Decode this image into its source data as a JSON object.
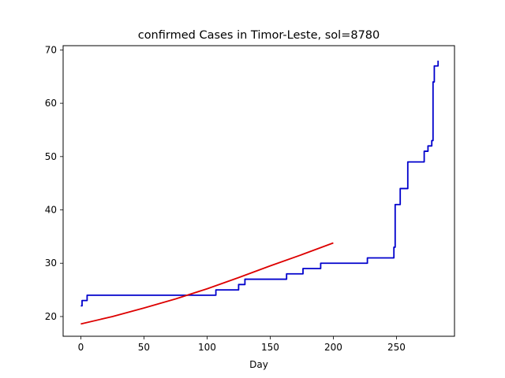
{
  "chart_data": {
    "type": "line",
    "title": "confirmed Cases in Timor-Leste, sol=8780",
    "xlabel": "Day",
    "ylabel": "",
    "xlim": [
      -14,
      296
    ],
    "ylim": [
      16.3,
      70.8
    ],
    "xticks": [
      0,
      50,
      100,
      150,
      200,
      250
    ],
    "yticks": [
      20,
      30,
      40,
      50,
      60,
      70
    ],
    "grid": false,
    "series": [
      {
        "color": "#0000cc",
        "style": "step",
        "x": [
          0,
          1,
          3,
          5,
          106,
          107,
          124,
          125,
          129,
          130,
          162,
          163,
          175,
          176,
          189,
          190,
          226,
          227,
          247,
          248,
          249,
          252,
          253,
          258,
          259,
          263,
          270,
          272,
          274,
          275,
          277,
          278,
          279,
          280,
          282,
          283
        ],
        "y": [
          22,
          23,
          23,
          24,
          24,
          25,
          25,
          26,
          26,
          27,
          27,
          28,
          28,
          29,
          29,
          30,
          30,
          31,
          31,
          33,
          41,
          41,
          44,
          44,
          49,
          49,
          49,
          51,
          51,
          52,
          52,
          53,
          64,
          67,
          67,
          68
        ]
      },
      {
        "color": "#dd0000",
        "style": "curve",
        "x": [
          0,
          25,
          50,
          75,
          100,
          125,
          150,
          175,
          200
        ],
        "y": [
          18.6,
          20.0,
          21.6,
          23.3,
          25.2,
          27.3,
          29.5,
          31.6,
          33.8
        ]
      }
    ]
  }
}
